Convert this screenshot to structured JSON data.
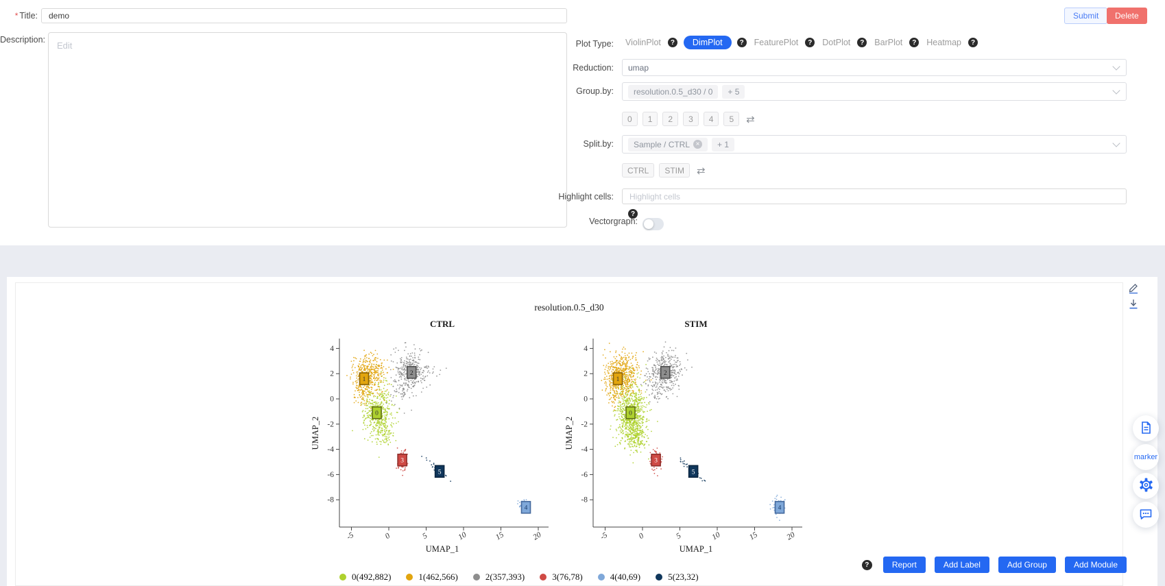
{
  "form": {
    "title": {
      "label": "Title:",
      "required_mark": "*",
      "value": "demo"
    },
    "description": {
      "label": "Description:",
      "placeholder": "Edit"
    },
    "actions": {
      "submit": "Submit",
      "delete": "Delete"
    },
    "plot_type": {
      "label": "Plot Type:",
      "options": [
        "ViolinPlot",
        "DimPlot",
        "FeaturePlot",
        "DotPlot",
        "BarPlot",
        "Heatmap"
      ],
      "selected": "DimPlot"
    },
    "reduction": {
      "label": "Reduction:",
      "value": "umap"
    },
    "group_by": {
      "label": "Group.by:",
      "tag": "resolution.0.5_d30 / 0",
      "more": "+ 5",
      "chips": [
        "0",
        "1",
        "2",
        "3",
        "4",
        "5"
      ]
    },
    "split_by": {
      "label": "Split.by:",
      "tag": "Sample / CTRL",
      "more": "+ 1",
      "chips": [
        "CTRL",
        "STIM"
      ]
    },
    "highlight": {
      "label": "Highlight cells:",
      "placeholder": "Highlight cells"
    },
    "vectorgraph": {
      "label": "Vectorgraph:"
    }
  },
  "icons": {
    "help": "?",
    "swap": "⇄",
    "close": "×"
  },
  "side_toolbar": {
    "marker_label": "marker"
  },
  "footer": {
    "buttons": [
      "Report",
      "Add Label",
      "Add Group",
      "Add Module"
    ]
  },
  "chart_data": {
    "type": "scatter",
    "suptitle": "resolution.0.5_d30",
    "xlabel": "UMAP_1",
    "ylabel": "UMAP_2",
    "xticks": [
      -5,
      0,
      5,
      10,
      15,
      20
    ],
    "yticks": [
      4,
      2,
      0,
      -2,
      -4,
      -6,
      -8
    ],
    "xlim": [
      -6.5,
      21
    ],
    "ylim": [
      -10,
      4.8
    ],
    "legend_position": "bottom",
    "grid": false,
    "clusters": [
      {
        "id": "0",
        "color": "#aed12e",
        "border": "#606e14",
        "label_text": "#333333",
        "label_x": -1.6,
        "label_y": -1.1
      },
      {
        "id": "1",
        "color": "#e2a50f",
        "border": "#8a6206",
        "label_text": "#333333",
        "label_x": -3.3,
        "label_y": 1.6
      },
      {
        "id": "2",
        "color": "#8e8e8e",
        "border": "#4f4f4f",
        "label_text": "#222222",
        "label_x": 3.05,
        "label_y": 2.1
      },
      {
        "id": "3",
        "color": "#cf4a45",
        "border": "#8f2f2b",
        "label_text": "#ffffff",
        "label_x": 1.8,
        "label_y": -4.85
      },
      {
        "id": "4",
        "color": "#7fa8d9",
        "border": "#44699d",
        "label_text": "#173a6b",
        "label_x": 18.35,
        "label_y": -8.6
      },
      {
        "id": "5",
        "color": "#10375c",
        "border": "#0a2540",
        "label_text": "#ffffff",
        "label_x": 6.8,
        "label_y": -5.75
      }
    ],
    "legend": [
      {
        "cluster": "0",
        "text": "0(492,882)"
      },
      {
        "cluster": "1",
        "text": "1(462,566)"
      },
      {
        "cluster": "2",
        "text": "2(357,393)"
      },
      {
        "cluster": "3",
        "text": "3(76,78)"
      },
      {
        "cluster": "4",
        "text": "4(40,69)"
      },
      {
        "cluster": "5",
        "text": "5(23,32)"
      }
    ],
    "counts": {
      "CTRL": [
        492,
        462,
        357,
        76,
        40,
        23
      ],
      "STIM": [
        882,
        566,
        393,
        78,
        69,
        32
      ]
    },
    "panels": [
      {
        "title": "CTRL",
        "parts": {
          "0": [
            [
              430,
              -1.45,
              -1.0,
              0.95,
              1.15,
              0
            ],
            [
              62,
              -0.7,
              -2.7,
              0.55,
              0.45,
              0
            ]
          ],
          "1": [
            [
              410,
              -2.75,
              1.95,
              1.05,
              0.8,
              0
            ],
            [
              52,
              -3.7,
              0.6,
              0.5,
              0.6,
              0
            ]
          ],
          "2": [
            [
              300,
              3.1,
              2.3,
              1.15,
              0.8,
              0
            ],
            [
              54,
              1.6,
              0.8,
              0.75,
              0.65,
              0
            ],
            [
              3,
              5.7,
              2.5,
              0.25,
              0.12,
              0
            ]
          ],
          "3": [
            [
              76,
              1.85,
              -4.85,
              0.4,
              0.45,
              0
            ]
          ],
          "4": [
            [
              40,
              18.1,
              -8.5,
              0.4,
              0.32,
              0
            ]
          ],
          "5": [
            [
              23,
              6.45,
              -5.55,
              1.05,
              0.1,
              -27
            ]
          ]
        }
      },
      {
        "title": "STIM",
        "parts": {
          "0": [
            [
              760,
              -1.55,
              -1.15,
              1.0,
              1.3,
              0
            ],
            [
              122,
              -0.8,
              -3.0,
              0.6,
              0.5,
              0
            ]
          ],
          "1": [
            [
              500,
              -2.8,
              1.95,
              1.05,
              0.85,
              0
            ],
            [
              66,
              -3.8,
              0.5,
              0.5,
              0.6,
              0
            ]
          ],
          "2": [
            [
              330,
              3.1,
              2.3,
              1.15,
              0.8,
              0
            ],
            [
              60,
              1.7,
              0.9,
              0.75,
              0.65,
              0
            ],
            [
              3,
              6.1,
              2.4,
              0.3,
              0.12,
              0
            ]
          ],
          "3": [
            [
              78,
              1.85,
              -4.85,
              0.42,
              0.48,
              0
            ]
          ],
          "4": [
            [
              69,
              18.1,
              -8.5,
              0.42,
              0.35,
              0
            ]
          ],
          "5": [
            [
              32,
              6.45,
              -5.6,
              1.05,
              0.12,
              -27
            ]
          ]
        }
      }
    ]
  }
}
